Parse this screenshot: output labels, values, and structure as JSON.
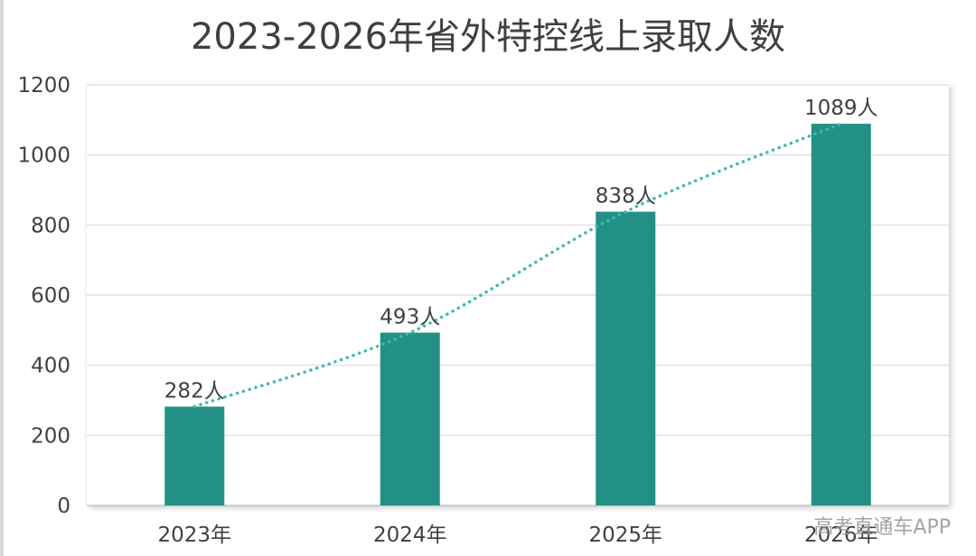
{
  "chart_data": {
    "type": "bar",
    "title": "2023-2026年省外特控线上录取人数",
    "categories": [
      "2023年",
      "2024年",
      "2025年",
      "2026年"
    ],
    "values": [
      282,
      493,
      838,
      1089
    ],
    "data_labels": [
      "282人",
      "493人",
      "838人",
      "1089人"
    ],
    "ylim": [
      0,
      1200
    ],
    "yticks": [
      "0",
      "200",
      "400",
      "600",
      "800",
      "1000",
      "1200"
    ],
    "ytick_values": [
      0,
      200,
      400,
      600,
      800,
      1000,
      1200
    ],
    "grid": true,
    "trendline": "dotted",
    "colors": {
      "bar": "#239085",
      "trendline": "#3fb8b0",
      "grid": "#d9d9d9"
    }
  },
  "watermark": "高考直通车APP"
}
